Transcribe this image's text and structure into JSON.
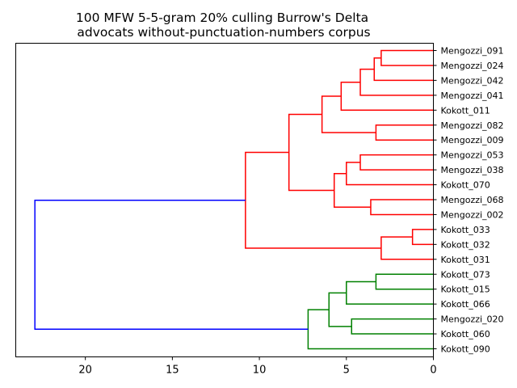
{
  "chart_data": {
    "type": "dendrogram",
    "orientation": "left",
    "title": [
      "100 MFW 5-5-gram 20% culling Burrow's Delta",
      "advocats without-punctuation-numbers corpus"
    ],
    "xlabel": "",
    "ylabel": "",
    "xlim": [
      24,
      0
    ],
    "x_ticks": [
      20,
      15,
      10,
      5,
      0
    ],
    "grid": false,
    "leaves": [
      "Mengozzi_091",
      "Mengozzi_024",
      "Mengozzi_042",
      "Mengozzi_041",
      "Kokott_011",
      "Mengozzi_082",
      "Mengozzi_009",
      "Mengozzi_053",
      "Mengozzi_038",
      "Kokott_070",
      "Mengozzi_068",
      "Mengozzi_002",
      "Kokott_033",
      "Kokott_032",
      "Kokott_031",
      "Kokott_073",
      "Kokott_015",
      "Kokott_066",
      "Mengozzi_020",
      "Kokott_060",
      "Kokott_090"
    ],
    "colors": {
      "cluster_red": "#ff0000",
      "cluster_green": "#008000",
      "root_blue": "#0000ff"
    },
    "links": [
      {
        "id": "A",
        "left": "Mengozzi_091",
        "right": "Mengozzi_024",
        "height": 3.0,
        "color": "cluster_red"
      },
      {
        "id": "B",
        "left": "Mengozzi_042",
        "right": "A",
        "height": 3.4,
        "color": "cluster_red"
      },
      {
        "id": "C",
        "left": "Mengozzi_041",
        "right": "B",
        "height": 4.2,
        "color": "cluster_red"
      },
      {
        "id": "D",
        "left": "Kokott_011",
        "right": "C",
        "height": 5.3,
        "color": "cluster_red"
      },
      {
        "id": "E",
        "left": "Mengozzi_082",
        "right": "Mengozzi_009",
        "height": 3.3,
        "color": "cluster_red"
      },
      {
        "id": "F",
        "left": "D",
        "right": "E",
        "height": 6.4,
        "color": "cluster_red"
      },
      {
        "id": "G",
        "left": "Mengozzi_053",
        "right": "Mengozzi_038",
        "height": 4.2,
        "color": "cluster_red"
      },
      {
        "id": "H",
        "left": "G",
        "right": "Kokott_070",
        "height": 5.0,
        "color": "cluster_red"
      },
      {
        "id": "I",
        "left": "Mengozzi_068",
        "right": "Mengozzi_002",
        "height": 3.6,
        "color": "cluster_red"
      },
      {
        "id": "J",
        "left": "H",
        "right": "I",
        "height": 5.7,
        "color": "cluster_red"
      },
      {
        "id": "K",
        "left": "F",
        "right": "J",
        "height": 8.3,
        "color": "cluster_red"
      },
      {
        "id": "L",
        "left": "Kokott_033",
        "right": "Kokott_032",
        "height": 1.2,
        "color": "cluster_red"
      },
      {
        "id": "M",
        "left": "L",
        "right": "Kokott_031",
        "height": 3.0,
        "color": "cluster_red"
      },
      {
        "id": "N",
        "left": "K",
        "right": "M",
        "height": 10.8,
        "color": "cluster_red"
      },
      {
        "id": "O",
        "left": "Kokott_073",
        "right": "Kokott_015",
        "height": 3.3,
        "color": "cluster_green"
      },
      {
        "id": "P",
        "left": "O",
        "right": "Kokott_066",
        "height": 5.0,
        "color": "cluster_green"
      },
      {
        "id": "Q",
        "left": "Mengozzi_020",
        "right": "Kokott_060",
        "height": 4.7,
        "color": "cluster_green"
      },
      {
        "id": "R",
        "left": "P",
        "right": "Q",
        "height": 6.0,
        "color": "cluster_green"
      },
      {
        "id": "S",
        "left": "R",
        "right": "Kokott_090",
        "height": 7.2,
        "color": "cluster_green"
      },
      {
        "id": "T",
        "left": "N",
        "right": "S",
        "height": 22.9,
        "color": "root_blue"
      }
    ]
  }
}
